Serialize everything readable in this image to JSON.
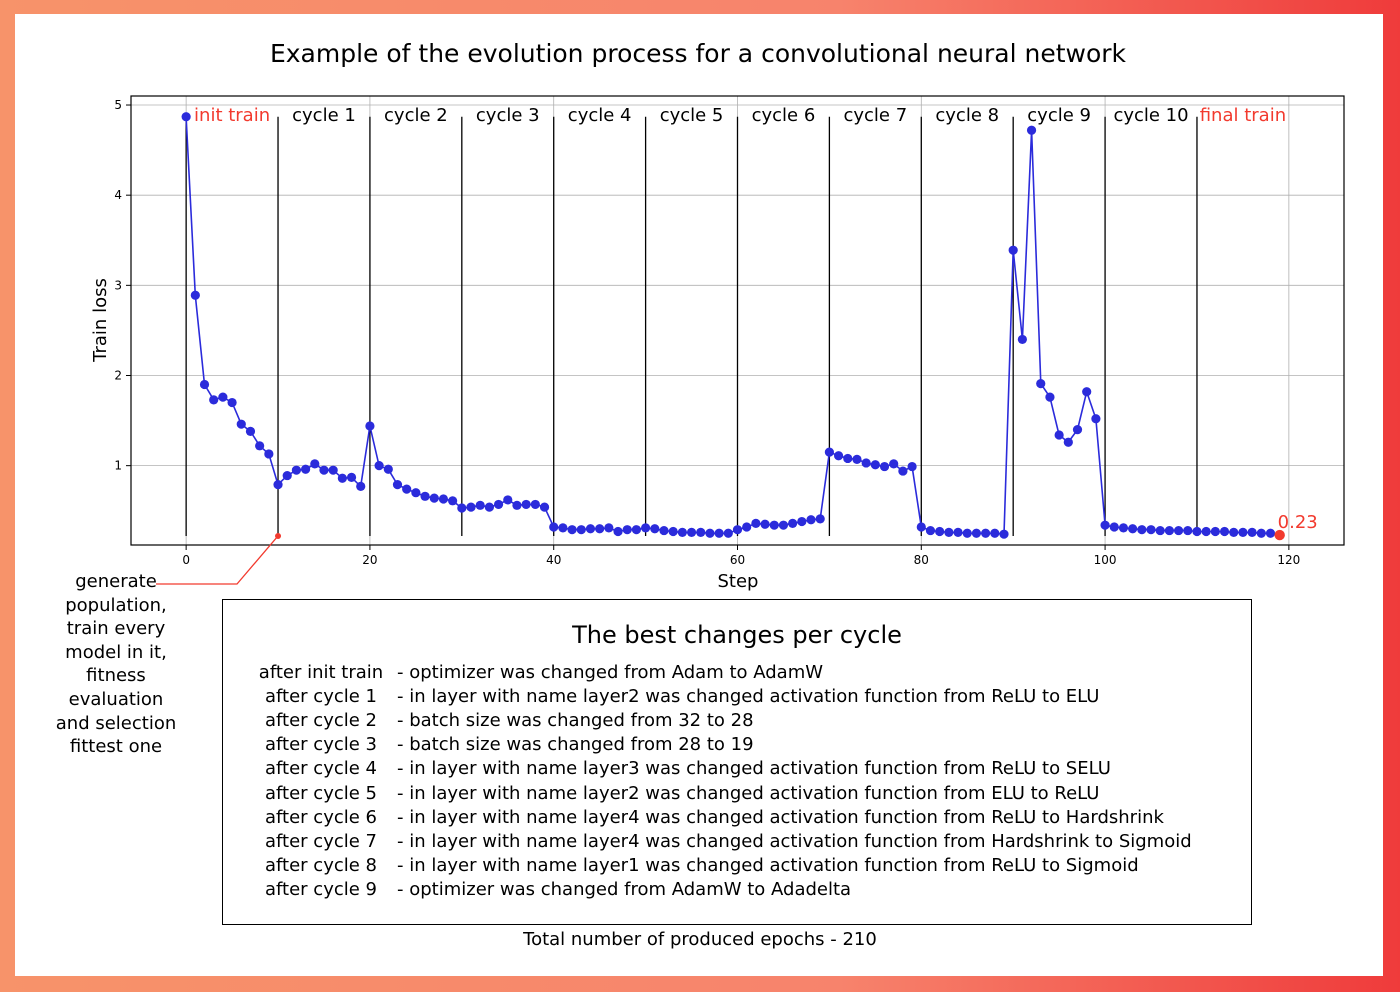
{
  "chart_data": {
    "type": "line",
    "title": "Example of the evolution process for a convolutional neural network",
    "xlabel": "Step",
    "ylabel": "Train loss",
    "xlim": [
      -6,
      126
    ],
    "ylim": [
      0.12,
      5.1
    ],
    "xticks": [
      0,
      20,
      40,
      60,
      80,
      100,
      120
    ],
    "yticks": [
      1,
      2,
      3,
      4,
      5
    ],
    "grid": true,
    "line_color": "#2b2bdb",
    "final_color": "#f23a2e",
    "cycle_boundaries": [
      10,
      20,
      30,
      40,
      50,
      60,
      70,
      80,
      90,
      100,
      110
    ],
    "cycle_labels": [
      {
        "text": "init train",
        "x_center": 5,
        "color": "red"
      },
      {
        "text": "cycle 1",
        "x_center": 15
      },
      {
        "text": "cycle 2",
        "x_center": 25
      },
      {
        "text": "cycle 3",
        "x_center": 35
      },
      {
        "text": "cycle 4",
        "x_center": 45
      },
      {
        "text": "cycle 5",
        "x_center": 55
      },
      {
        "text": "cycle 6",
        "x_center": 65
      },
      {
        "text": "cycle 7",
        "x_center": 75
      },
      {
        "text": "cycle 8",
        "x_center": 85
      },
      {
        "text": "cycle 9",
        "x_center": 95
      },
      {
        "text": "cycle 10",
        "x_center": 105
      },
      {
        "text": "final train",
        "x_center": 115,
        "color": "red"
      }
    ],
    "series": [
      {
        "x": [
          0,
          1,
          2,
          3,
          4,
          5,
          6,
          7,
          8,
          9,
          10,
          11,
          12,
          13,
          14,
          15,
          16,
          17,
          18,
          19,
          20,
          21,
          22,
          23,
          24,
          25,
          26,
          27,
          28,
          29,
          30,
          31,
          32,
          33,
          34,
          35,
          36,
          37,
          38,
          39,
          40,
          41,
          42,
          43,
          44,
          45,
          46,
          47,
          48,
          49,
          50,
          51,
          52,
          53,
          54,
          55,
          56,
          57,
          58,
          59,
          60,
          61,
          62,
          63,
          64,
          65,
          66,
          67,
          68,
          69,
          70,
          71,
          72,
          73,
          74,
          75,
          76,
          77,
          78,
          79,
          80,
          81,
          82,
          83,
          84,
          85,
          86,
          87,
          88,
          89,
          90,
          91,
          92,
          93,
          94,
          95,
          96,
          97,
          98,
          99,
          100,
          101,
          102,
          103,
          104,
          105,
          106,
          107,
          108,
          109,
          110,
          111,
          112,
          113,
          114,
          115,
          116,
          117,
          118,
          119
        ],
        "y": [
          4.87,
          2.89,
          1.9,
          1.73,
          1.76,
          1.7,
          1.46,
          1.38,
          1.22,
          1.13,
          0.79,
          0.89,
          0.95,
          0.96,
          1.02,
          0.95,
          0.95,
          0.86,
          0.87,
          0.77,
          1.44,
          1.0,
          0.96,
          0.79,
          0.74,
          0.7,
          0.66,
          0.64,
          0.63,
          0.61,
          0.53,
          0.54,
          0.56,
          0.54,
          0.57,
          0.62,
          0.56,
          0.57,
          0.57,
          0.54,
          0.32,
          0.31,
          0.29,
          0.29,
          0.3,
          0.3,
          0.31,
          0.27,
          0.29,
          0.29,
          0.31,
          0.3,
          0.28,
          0.27,
          0.26,
          0.26,
          0.26,
          0.25,
          0.25,
          0.25,
          0.29,
          0.32,
          0.36,
          0.35,
          0.34,
          0.34,
          0.36,
          0.38,
          0.4,
          0.41,
          1.15,
          1.11,
          1.08,
          1.07,
          1.03,
          1.01,
          0.99,
          1.02,
          0.94,
          0.99,
          0.32,
          0.28,
          0.27,
          0.26,
          0.26,
          0.25,
          0.25,
          0.25,
          0.25,
          0.24,
          3.39,
          2.4,
          4.72,
          1.91,
          1.76,
          1.34,
          1.26,
          1.4,
          1.82,
          1.52,
          0.34,
          0.32,
          0.31,
          0.3,
          0.29,
          0.29,
          0.28,
          0.28,
          0.28,
          0.28,
          0.27,
          0.27,
          0.27,
          0.27,
          0.26,
          0.26,
          0.26,
          0.25,
          0.25,
          0.23
        ]
      }
    ],
    "final_point": {
      "x": 119,
      "y": 0.23,
      "label": "0.23"
    },
    "annotation_marker": {
      "x": 10,
      "y": 0.22
    }
  },
  "annotation": {
    "lines": [
      "generate",
      "population,",
      "train every",
      "model in it,",
      "fitness",
      "evaluation",
      "and selection",
      "fittest one"
    ]
  },
  "changes": {
    "title": "The best changes per cycle",
    "rows": [
      {
        "when": "after init train",
        "what": "- optimizer was changed from Adam to AdamW"
      },
      {
        "when": "after cycle 1",
        "what": "- in layer with name layer2 was changed activation function from ReLU to ELU"
      },
      {
        "when": "after cycle 2",
        "what": "- batch size was changed from 32 to 28"
      },
      {
        "when": "after cycle 3",
        "what": "- batch size was changed from 28 to 19"
      },
      {
        "when": "after cycle 4",
        "what": "- in layer with name layer3 was changed activation function from ReLU to SELU"
      },
      {
        "when": "after cycle 5",
        "what": "- in layer with name layer2 was changed activation function from ELU to ReLU"
      },
      {
        "when": "after cycle 6",
        "what": "- in layer with name layer4 was changed activation function from ReLU to Hardshrink"
      },
      {
        "when": "after cycle 7",
        "what": "- in layer with name layer4 was changed activation function from Hardshrink to Sigmoid"
      },
      {
        "when": "after cycle 8",
        "what": "- in layer with name layer1 was changed activation function from ReLU to Sigmoid"
      },
      {
        "when": "after cycle 9",
        "what": "- optimizer was changed from AdamW to Adadelta"
      }
    ]
  },
  "footer": "Total number of produced epochs - 210"
}
